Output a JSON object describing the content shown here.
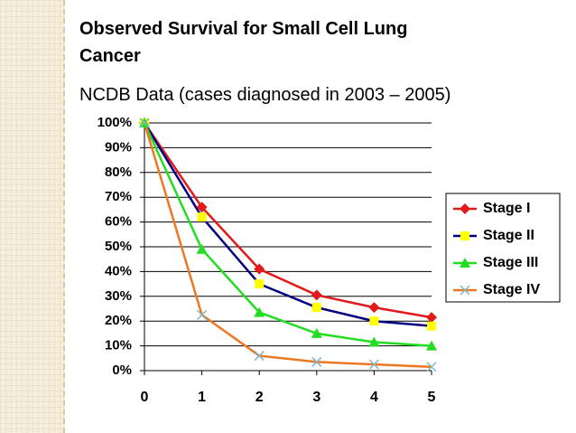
{
  "chart_data": {
    "type": "line",
    "title": "Observed Survival for Small Cell Lung Cancer",
    "subtitle": "NCDB Data (cases diagnosed in 2003 – 2005)",
    "x": [
      0,
      1,
      2,
      3,
      4,
      5
    ],
    "xlim": [
      0,
      5
    ],
    "xticks": [
      0,
      1,
      2,
      3,
      4,
      5
    ],
    "ylim": [
      0,
      100
    ],
    "yticks": [
      {
        "value": 0,
        "label": "0%"
      },
      {
        "value": 10,
        "label": "10%"
      },
      {
        "value": 20,
        "label": "20%"
      },
      {
        "value": 30,
        "label": "30%"
      },
      {
        "value": 40,
        "label": "40%"
      },
      {
        "value": 50,
        "label": "50%"
      },
      {
        "value": 60,
        "label": "60%"
      },
      {
        "value": 70,
        "label": "70%"
      },
      {
        "value": 80,
        "label": "80%"
      },
      {
        "value": 90,
        "label": "90%"
      },
      {
        "value": 100,
        "label": "100%"
      }
    ],
    "grid": true,
    "legend": "right",
    "series": [
      {
        "name": "Stage I",
        "color": "#e31a1c",
        "marker": "diamond",
        "marker_color": "#e31a1c",
        "values": [
          100,
          66,
          41,
          30.5,
          25.5,
          21.5
        ]
      },
      {
        "name": "Stage II",
        "color": "#000080",
        "marker": "square",
        "marker_color": "#ffff00",
        "values": [
          100,
          62,
          35,
          25.5,
          20,
          18
        ]
      },
      {
        "name": "Stage III",
        "color": "#22dd22",
        "marker": "triangle",
        "marker_color": "#22dd22",
        "values": [
          100,
          49,
          23.5,
          15,
          11.5,
          10
        ]
      },
      {
        "name": "Stage IV",
        "color": "#ee7722",
        "marker": "x",
        "marker_color": "#7fb6c8",
        "values": [
          100,
          22.5,
          6,
          3.5,
          2.5,
          1.5
        ]
      }
    ]
  }
}
